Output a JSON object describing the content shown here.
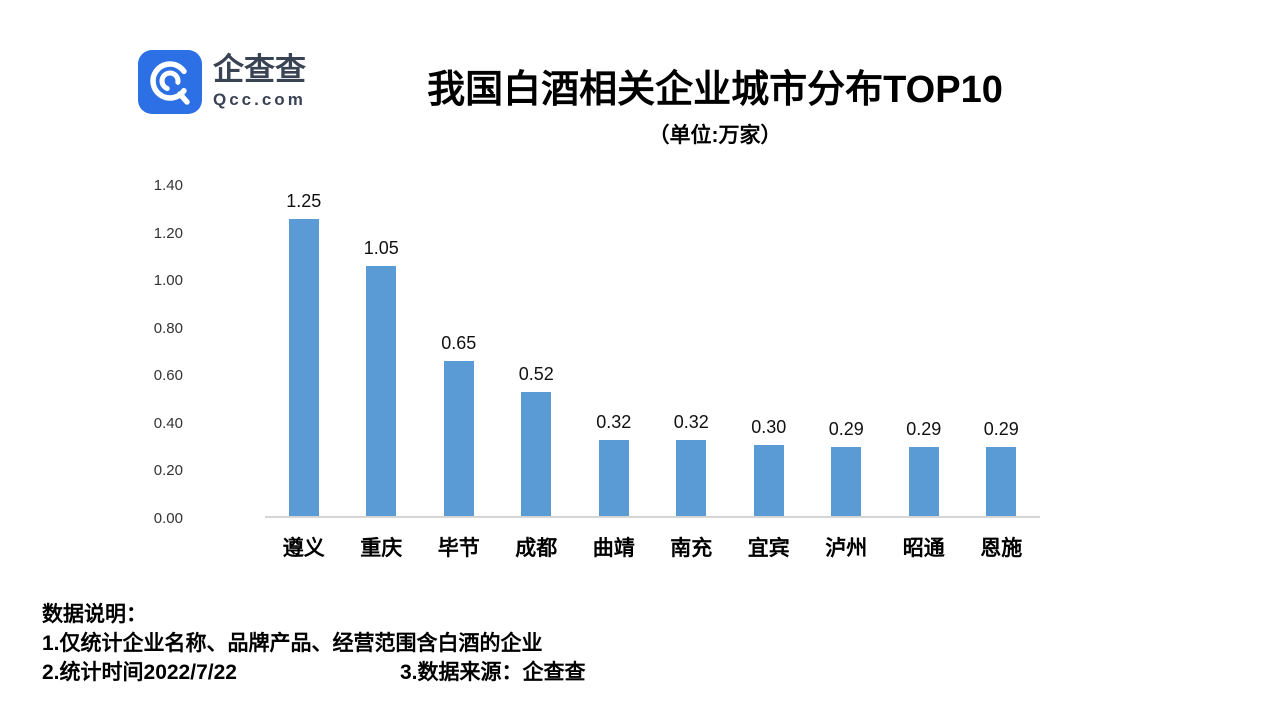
{
  "logo": {
    "brand": "企查查",
    "domain": "Qcc.com",
    "icon_color": "#2d6fe5"
  },
  "header": {
    "title": "我国白酒相关企业城市分布TOP10",
    "subtitle": "（单位:万家）"
  },
  "chart_data": {
    "type": "bar",
    "categories": [
      "遵义",
      "重庆",
      "毕节",
      "成都",
      "曲靖",
      "南充",
      "宜宾",
      "泸州",
      "昭通",
      "恩施"
    ],
    "values": [
      1.25,
      1.05,
      0.65,
      0.52,
      0.32,
      0.32,
      0.3,
      0.29,
      0.29,
      0.29
    ],
    "title": "我国白酒相关企业城市分布TOP10",
    "subtitle": "（单位:万家）",
    "xlabel": "",
    "ylabel": "",
    "ylim": [
      0,
      1.4
    ],
    "yticks": [
      0.0,
      0.2,
      0.4,
      0.6,
      0.8,
      1.0,
      1.2,
      1.4
    ],
    "grid": false,
    "legend": "none",
    "bar_color": "#5b9bd5",
    "axis_line_color": "#d6d6d6"
  },
  "footer": {
    "heading": "数据说明：",
    "line1": "1.仅统计企业名称、品牌产品、经营范围含白酒的企业",
    "line2_left": "2.统计时间2022/7/22",
    "line2_right": "3.数据来源：企查查"
  }
}
